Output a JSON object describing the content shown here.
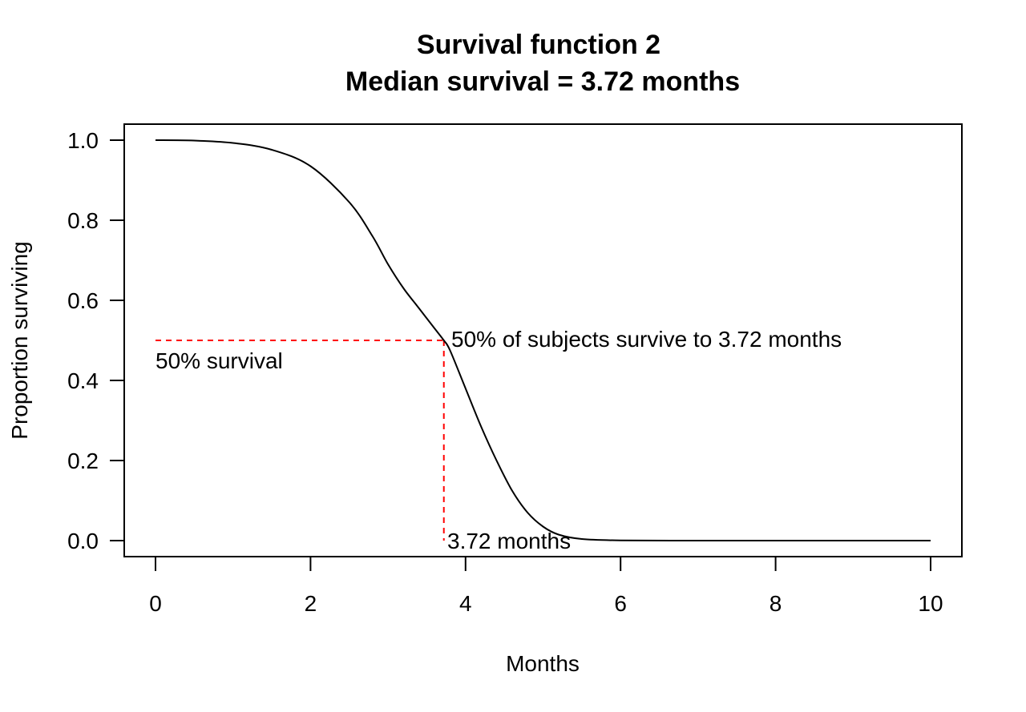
{
  "chart_data": {
    "type": "line",
    "title": "Survival function 2",
    "subtitle": "Median survival = 3.72 months",
    "xlabel": "Months",
    "ylabel": "Proportion surviving",
    "xlim": [
      0,
      10
    ],
    "ylim": [
      0,
      1
    ],
    "x_ticks": [
      0,
      2,
      4,
      6,
      8,
      10
    ],
    "x_tick_labels": [
      "0",
      "2",
      "4",
      "6",
      "8",
      "10"
    ],
    "y_ticks": [
      0.0,
      0.2,
      0.4,
      0.6,
      0.8,
      1.0
    ],
    "y_tick_labels": [
      "0.0",
      "0.2",
      "0.4",
      "0.6",
      "0.8",
      "1.0"
    ],
    "grid": false,
    "series": [
      {
        "color": "#000000",
        "x": [
          0,
          0.5,
          1,
          1.5,
          2,
          2.5,
          2.8,
          3,
          3.2,
          3.4,
          3.6,
          3.72,
          3.8,
          4,
          4.2,
          4.4,
          4.6,
          4.8,
          5,
          5.2,
          5.5,
          6,
          7,
          8,
          9,
          10
        ],
        "y": [
          1.0,
          0.999,
          0.993,
          0.976,
          0.935,
          0.845,
          0.76,
          0.69,
          0.63,
          0.58,
          0.53,
          0.5,
          0.475,
          0.38,
          0.285,
          0.2,
          0.125,
          0.07,
          0.035,
          0.015,
          0.004,
          0.0005,
          0,
          0,
          0,
          0
        ]
      }
    ],
    "median": {
      "x": 3.72,
      "y": 0.5,
      "color": "#ff0000",
      "label_horizontal": "50% survival",
      "label_vertical": "3.72 months",
      "label_point": "50% of subjects survive to  3.72 months"
    }
  }
}
